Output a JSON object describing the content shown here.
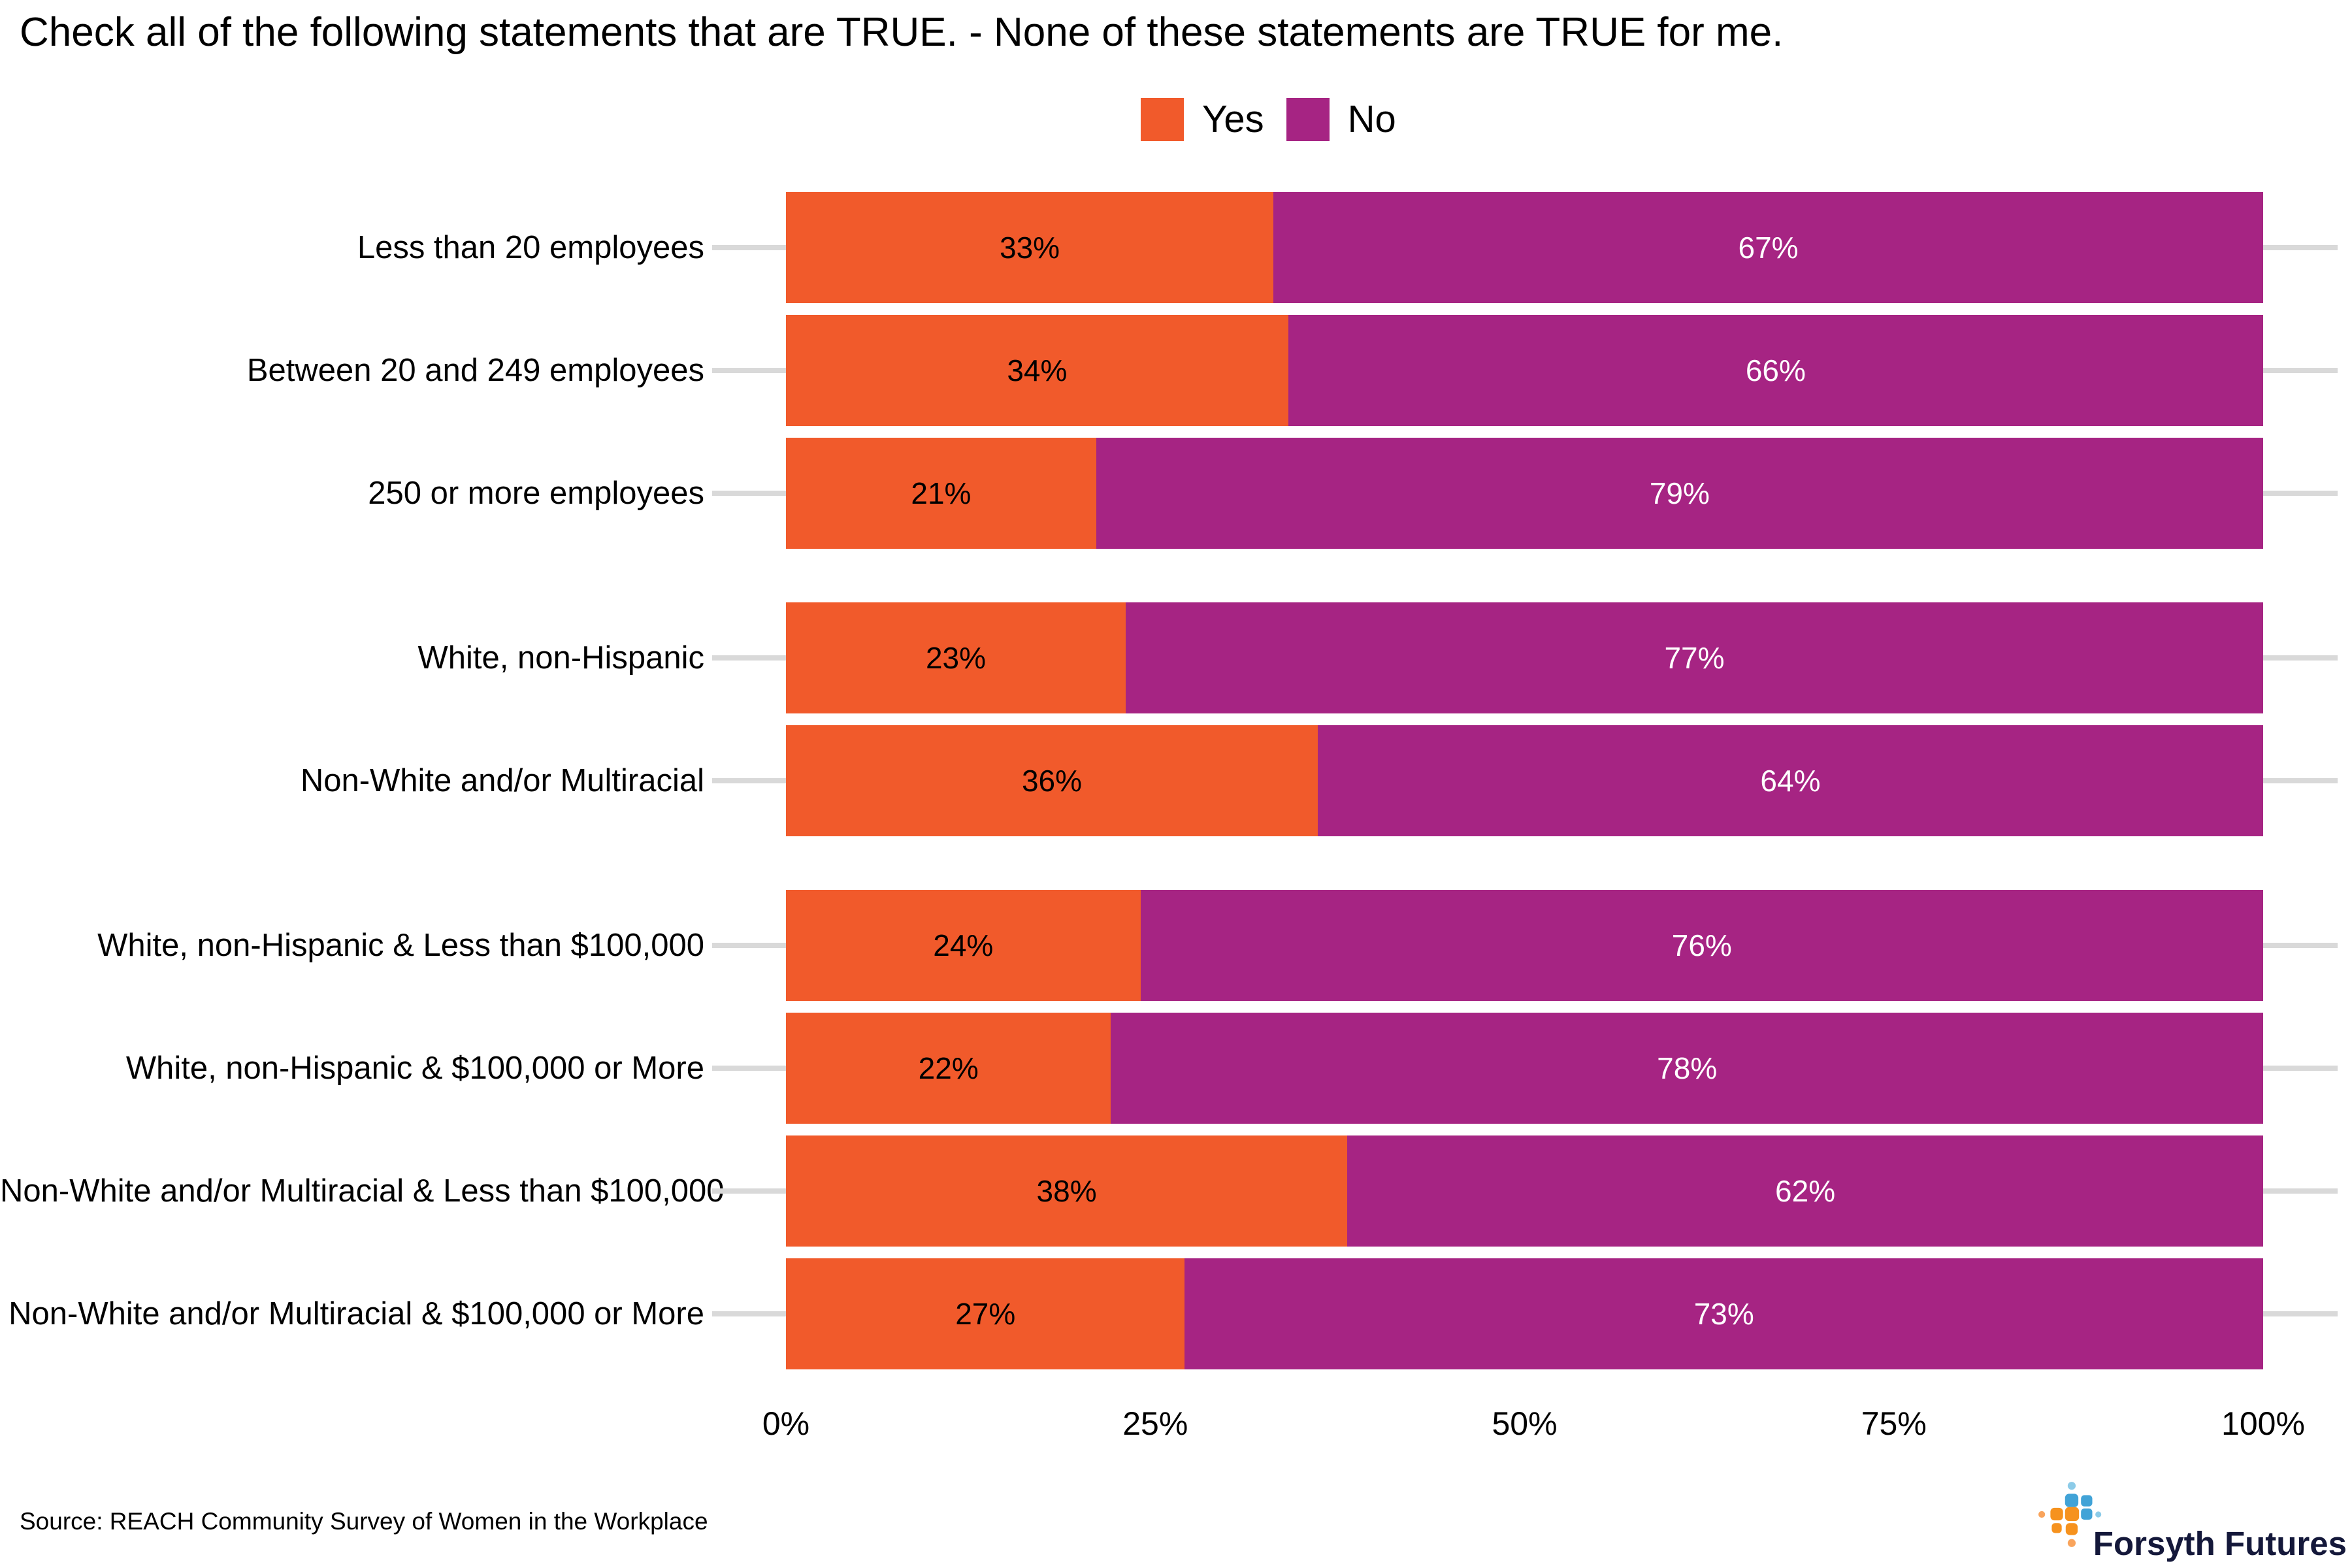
{
  "title": "Check all of the following statements that are TRUE. - None of these statements are TRUE for me.",
  "legend": {
    "position": "top-center",
    "items": [
      {
        "label": "Yes",
        "color": "#f15a2b"
      },
      {
        "label": "No",
        "color": "#a62483"
      }
    ]
  },
  "chart_data": {
    "type": "bar",
    "orientation": "horizontal-stacked",
    "title": "Check all of the following statements that are TRUE. - None of these statements are TRUE for me.",
    "categories": [
      "Less than 20 employees",
      "Between 20 and 249 employees",
      "250 or more employees",
      "White, non-Hispanic",
      "Non-White and/or Multiracial",
      "White, non-Hispanic & Less than $100,000",
      "White, non-Hispanic & $100,000 or More",
      "Non-White and/or Multiracial & Less than $100,000",
      "Non-White and/or Multiracial & $100,000 or More"
    ],
    "series": [
      {
        "name": "Yes",
        "color": "#f15a2b",
        "values": [
          33,
          34,
          21,
          23,
          36,
          24,
          22,
          38,
          27
        ]
      },
      {
        "name": "No",
        "color": "#a62483",
        "values": [
          67,
          66,
          79,
          77,
          64,
          76,
          78,
          62,
          73
        ]
      }
    ],
    "groups": [
      [
        0,
        1,
        2
      ],
      [
        3,
        4
      ],
      [
        5,
        6,
        7,
        8
      ]
    ],
    "x_axis": {
      "range": [
        0,
        100
      ],
      "ticks": [
        "0%",
        "25%",
        "50%",
        "75%",
        "100%"
      ]
    },
    "grid": "off",
    "legend_position": "top-center",
    "rows": [
      {
        "category": "Less than 20 employees",
        "yes": 33,
        "no": 67,
        "yes_label": "33%",
        "no_label": "67%"
      },
      {
        "category": "Between 20 and 249 employees",
        "yes": 34,
        "no": 66,
        "yes_label": "34%",
        "no_label": "66%"
      },
      {
        "category": "250 or more employees",
        "yes": 21,
        "no": 79,
        "yes_label": "21%",
        "no_label": "79%"
      },
      {
        "category": "White, non-Hispanic",
        "yes": 23,
        "no": 77,
        "yes_label": "23%",
        "no_label": "77%"
      },
      {
        "category": "Non-White and/or Multiracial",
        "yes": 36,
        "no": 64,
        "yes_label": "36%",
        "no_label": "64%"
      },
      {
        "category": "White, non-Hispanic & Less than $100,000",
        "yes": 24,
        "no": 76,
        "yes_label": "24%",
        "no_label": "76%"
      },
      {
        "category": "White, non-Hispanic & $100,000 or More",
        "yes": 22,
        "no": 78,
        "yes_label": "22%",
        "no_label": "78%"
      },
      {
        "category": "Non-White and/or Multiracial & Less than $100,000",
        "yes": 38,
        "no": 62,
        "yes_label": "38%",
        "no_label": "62%"
      },
      {
        "category": "Non-White and/or Multiracial & $100,000 or More",
        "yes": 27,
        "no": 73,
        "yes_label": "27%",
        "no_label": "73%"
      }
    ]
  },
  "footer": {
    "source": "Source: REACH Community Survey of Women in the Workplace",
    "logo_text": "Forsyth Futures"
  },
  "colors": {
    "yes": "#f15a2b",
    "no": "#a62483",
    "leader_line": "#d9d9d9",
    "logo_orange": "#f6921e",
    "logo_blue": "#41a3d7",
    "logo_light_blue": "#8ccbe8",
    "logo_pale_orange": "#f9a45c",
    "logo_text": "#14183a"
  }
}
